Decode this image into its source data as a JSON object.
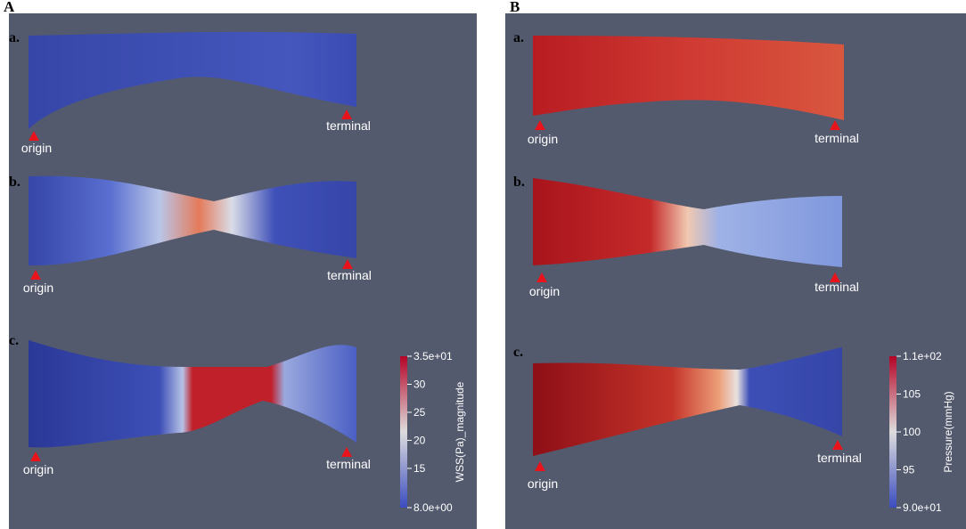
{
  "panels": [
    {
      "label": "A",
      "figures": [
        {
          "label": "a.",
          "origin": "origin",
          "terminal": "terminal"
        },
        {
          "label": "b.",
          "origin": "origin",
          "terminal": "terminal"
        },
        {
          "label": "c.",
          "origin": "origin",
          "terminal": "terminal"
        }
      ],
      "colorbar": {
        "title": "WSS(Pa)_magnitude",
        "lim": [
          8,
          35
        ],
        "ticks": [
          {
            "value": 35,
            "label": "3.5e+01"
          },
          30,
          25,
          20,
          15,
          {
            "value": 8,
            "label": "8.0e+00"
          }
        ]
      }
    },
    {
      "label": "B",
      "figures": [
        {
          "label": "a.",
          "origin": "origin",
          "terminal": "terminal"
        },
        {
          "label": "b.",
          "origin": "origin",
          "terminal": "terminal"
        },
        {
          "label": "c.",
          "origin": "origin",
          "terminal": "terminal"
        }
      ],
      "colorbar": {
        "title": "Pressure(mmHg)",
        "lim": [
          90,
          110
        ],
        "ticks": [
          {
            "value": 110,
            "label": "1.1e+02"
          },
          105,
          100,
          95,
          {
            "value": 90,
            "label": "9.0e+01"
          }
        ]
      }
    }
  ]
}
